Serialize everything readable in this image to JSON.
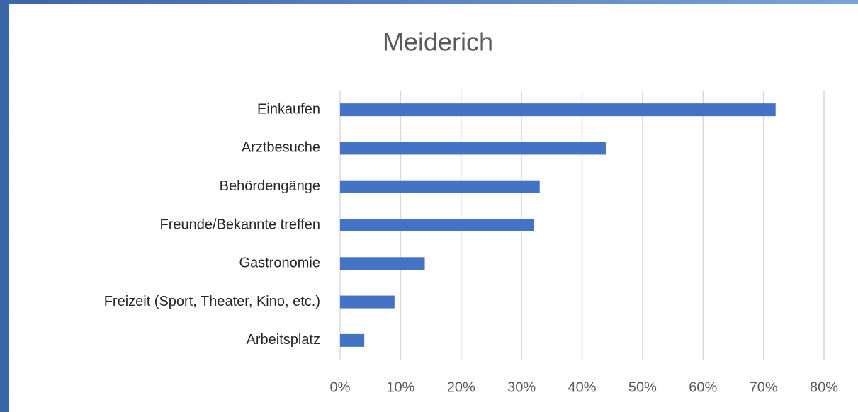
{
  "chart_data": {
    "type": "bar",
    "orientation": "horizontal",
    "title": "Meiderich",
    "categories": [
      "Einkaufen",
      "Arztbesuche",
      "Behördengänge",
      "Freunde/Bekannte treffen",
      "Gastronomie",
      "Freizeit (Sport, Theater, Kino, etc.)",
      "Arbeitsplatz"
    ],
    "values": [
      72,
      44,
      33,
      32,
      14,
      9,
      4
    ],
    "color": "#4472c4",
    "xlim": [
      0,
      80
    ],
    "xticks": [
      {
        "value": 0,
        "label": "0%"
      },
      {
        "value": 10,
        "label": "10%"
      },
      {
        "value": 20,
        "label": "20%"
      },
      {
        "value": 30,
        "label": "30%"
      },
      {
        "value": 40,
        "label": "40%"
      },
      {
        "value": 50,
        "label": "50%"
      },
      {
        "value": 60,
        "label": "60%"
      },
      {
        "value": 70,
        "label": "70%"
      },
      {
        "value": 80,
        "label": "80%"
      }
    ],
    "grid": true
  }
}
